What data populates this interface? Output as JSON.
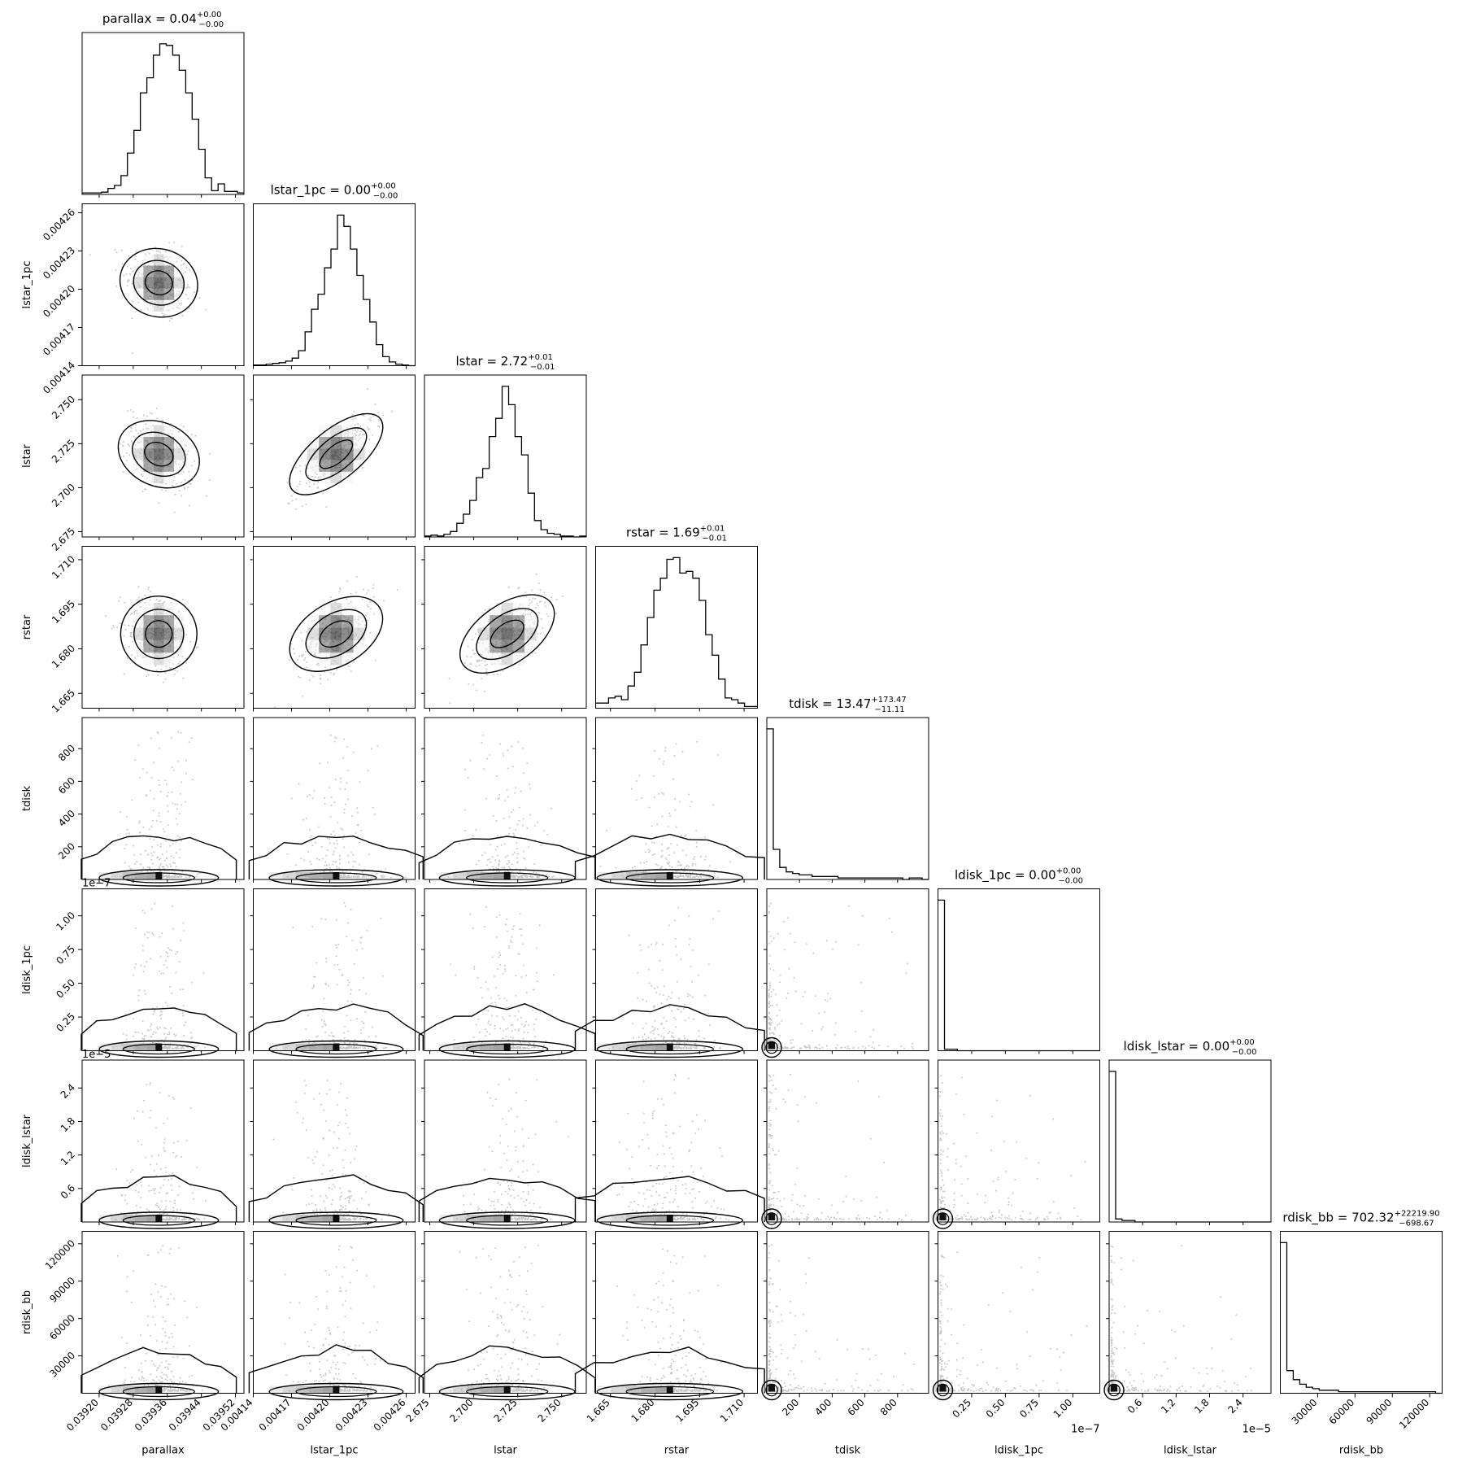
{
  "chart_data": {
    "type": "corner",
    "parameters": [
      {
        "key": "parallax",
        "label": "parallax",
        "title": "parallax = 0.04",
        "title_sup": "+0.00",
        "title_sub": "−0.00",
        "range": [
          0.03916,
          0.03954
        ],
        "ticks": [
          "0.03920",
          "0.03928",
          "0.03936",
          "0.03944",
          "0.03952"
        ],
        "tick_values": [
          0.0392,
          0.03928,
          0.03936,
          0.03944,
          0.03952
        ],
        "offset_text": "",
        "median": 0.03934,
        "spread": 4e-05,
        "skewed": false
      },
      {
        "key": "lstar_1pc",
        "label": "lstar_1pc",
        "title": "lstar_1pc = 0.00",
        "title_sup": "+0.00",
        "title_sub": "−0.00",
        "range": [
          0.00414,
          0.004267
        ],
        "ticks": [
          "0.00414",
          "0.00417",
          "0.00420",
          "0.00423",
          "0.00426"
        ],
        "tick_values": [
          0.00414,
          0.00417,
          0.0042,
          0.00423,
          0.00426
        ],
        "offset_text": "",
        "median": 0.004205,
        "spread": 1.5e-05,
        "skewed": false
      },
      {
        "key": "lstar",
        "label": "lstar",
        "title": "lstar = 2.72",
        "title_sup": "+0.01",
        "title_sub": "−0.01",
        "range": [
          2.672,
          2.764
        ],
        "ticks": [
          "2.675",
          "2.700",
          "2.725",
          "2.750"
        ],
        "tick_values": [
          2.675,
          2.7,
          2.725,
          2.75
        ],
        "offset_text": "",
        "median": 2.719,
        "spread": 0.011,
        "skewed": false
      },
      {
        "key": "rstar",
        "label": "rstar",
        "title": "rstar = 1.69",
        "title_sup": "+0.01",
        "title_sub": "−0.01",
        "range": [
          1.66,
          1.7145
        ],
        "ticks": [
          "1.665",
          "1.680",
          "1.695",
          "1.710"
        ],
        "tick_values": [
          1.665,
          1.68,
          1.695,
          1.71
        ],
        "offset_text": "",
        "median": 1.685,
        "spread": 0.007,
        "skewed": false
      },
      {
        "key": "tdisk",
        "label": "tdisk",
        "title": "tdisk = 13.47",
        "title_sup": "+173.47",
        "title_sub": "−11.11",
        "range": [
          0,
          990
        ],
        "ticks": [
          "200",
          "400",
          "600",
          "800"
        ],
        "tick_values": [
          200,
          400,
          600,
          800
        ],
        "offset_text": "",
        "median": 13.47,
        "spread": 60,
        "skewed": true
      },
      {
        "key": "ldisk_1pc",
        "label": "ldisk_1pc",
        "title": "ldisk_1pc = 0.00",
        "title_sup": "+0.00",
        "title_sub": "−0.00",
        "range": [
          0,
          1.2
        ],
        "ticks": [
          "0.25",
          "0.50",
          "0.75",
          "1.00"
        ],
        "tick_values": [
          0.25,
          0.5,
          0.75,
          1.0
        ],
        "offset_text": "1e−7",
        "median": 0.01,
        "spread": 0.06,
        "skewed": true
      },
      {
        "key": "ldisk_lstar",
        "label": "ldisk_lstar",
        "title": "ldisk_lstar = 0.00",
        "title_sup": "+0.00",
        "title_sub": "−0.00",
        "range": [
          0,
          2.9
        ],
        "ticks": [
          "0.6",
          "1.2",
          "1.8",
          "2.4"
        ],
        "tick_values": [
          0.6,
          1.2,
          1.8,
          2.4
        ],
        "offset_text": "1e−5",
        "median": 0.03,
        "spread": 0.15,
        "skewed": true
      },
      {
        "key": "rdisk_bb",
        "label": "rdisk_bb",
        "title": "rdisk_bb = 702.32",
        "title_sup": "+22219.90",
        "title_sub": "−698.67",
        "range": [
          0,
          130000
        ],
        "ticks": [
          "30000",
          "60000",
          "90000",
          "120000"
        ],
        "tick_values": [
          30000,
          60000,
          90000,
          120000
        ],
        "offset_text": "",
        "median": 702.32,
        "spread": 9000,
        "skewed": true
      }
    ],
    "histograms": [
      [
        2,
        2,
        2,
        3,
        8,
        12,
        25,
        55,
        85,
        135,
        155,
        185,
        200,
        198,
        185,
        165,
        135,
        100,
        60,
        22,
        5,
        14,
        4,
        4,
        2
      ],
      [
        1,
        1,
        2,
        3,
        4,
        6,
        10,
        20,
        45,
        75,
        95,
        130,
        155,
        200,
        185,
        155,
        120,
        88,
        58,
        28,
        12,
        5,
        2,
        1,
        0
      ],
      [
        1,
        2,
        1,
        3,
        6,
        15,
        25,
        40,
        65,
        75,
        110,
        130,
        165,
        145,
        110,
        90,
        48,
        18,
        8,
        4,
        3,
        1,
        1,
        0,
        1
      ],
      [
        3,
        3,
        6,
        7,
        5,
        13,
        21,
        37,
        53,
        69,
        76,
        87,
        88,
        79,
        80,
        76,
        63,
        43,
        31,
        17,
        6,
        5,
        3,
        1,
        1
      ],
      [
        100,
        20,
        8,
        5,
        4,
        3,
        3,
        2,
        2,
        2,
        2,
        1,
        1,
        1,
        1,
        1,
        1,
        1,
        1,
        1,
        1,
        0,
        1,
        1,
        0
      ],
      [
        100,
        1,
        1,
        0,
        0,
        0,
        0,
        0,
        0,
        0,
        0,
        0,
        0,
        0,
        0,
        0,
        0,
        0,
        0,
        0,
        0,
        0,
        0,
        0,
        0
      ],
      [
        100,
        2,
        1,
        1,
        0,
        0,
        0,
        0,
        0,
        0,
        0,
        0,
        0,
        0,
        0,
        0,
        0,
        0,
        0,
        0,
        0,
        0,
        0,
        0,
        0
      ],
      [
        100,
        15,
        9,
        6,
        4,
        3,
        2,
        2,
        2,
        1,
        1,
        1,
        1,
        1,
        1,
        1,
        1,
        1,
        1,
        1,
        1,
        1,
        1,
        1,
        0
      ]
    ],
    "correlations": {
      "1,0": -0.25,
      "2,0": -0.4,
      "2,1": 0.8,
      "3,0": -0.2,
      "3,1": 0.55,
      "3,2": 0.65
    },
    "grid": false,
    "legend": "none"
  }
}
